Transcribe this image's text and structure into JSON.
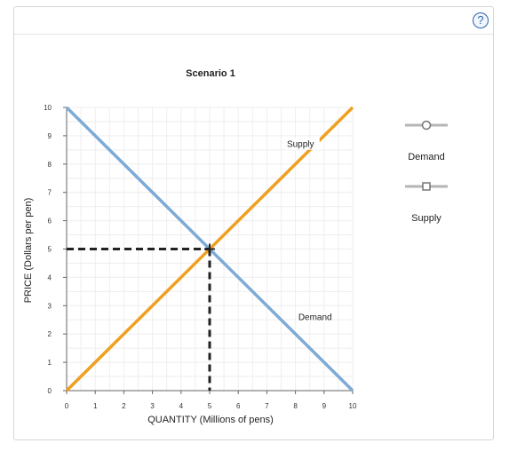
{
  "help": {
    "label": "?"
  },
  "chart_data": {
    "type": "line",
    "title": "Scenario 1",
    "xlabel": "QUANTITY (Millions of pens)",
    "ylabel": "PRICE (Dollars per pen)",
    "xlim": [
      0,
      10
    ],
    "ylim": [
      0,
      10
    ],
    "xticks": [
      "0",
      "1",
      "2",
      "3",
      "4",
      "5",
      "6",
      "7",
      "8",
      "9",
      "10"
    ],
    "yticks": [
      "0",
      "1",
      "2",
      "3",
      "4",
      "5",
      "6",
      "7",
      "8",
      "9",
      "10"
    ],
    "grid": true,
    "series": [
      {
        "name": "Demand",
        "color": "#7eaad6",
        "marker": "circle",
        "x": [
          0,
          10
        ],
        "y": [
          10,
          0
        ]
      },
      {
        "name": "Supply",
        "color": "#f0a020",
        "marker": "square",
        "x": [
          0,
          10
        ],
        "y": [
          0,
          10
        ]
      }
    ],
    "annotations": [
      {
        "text": "Supply",
        "x": 7.7,
        "y": 8.6
      },
      {
        "text": "Demand",
        "x": 8.1,
        "y": 2.5
      }
    ],
    "equilibrium": {
      "x": 5,
      "y": 5,
      "color": "#222222"
    },
    "legend": {
      "position": "right",
      "labels": [
        "Demand",
        "Supply"
      ]
    }
  }
}
